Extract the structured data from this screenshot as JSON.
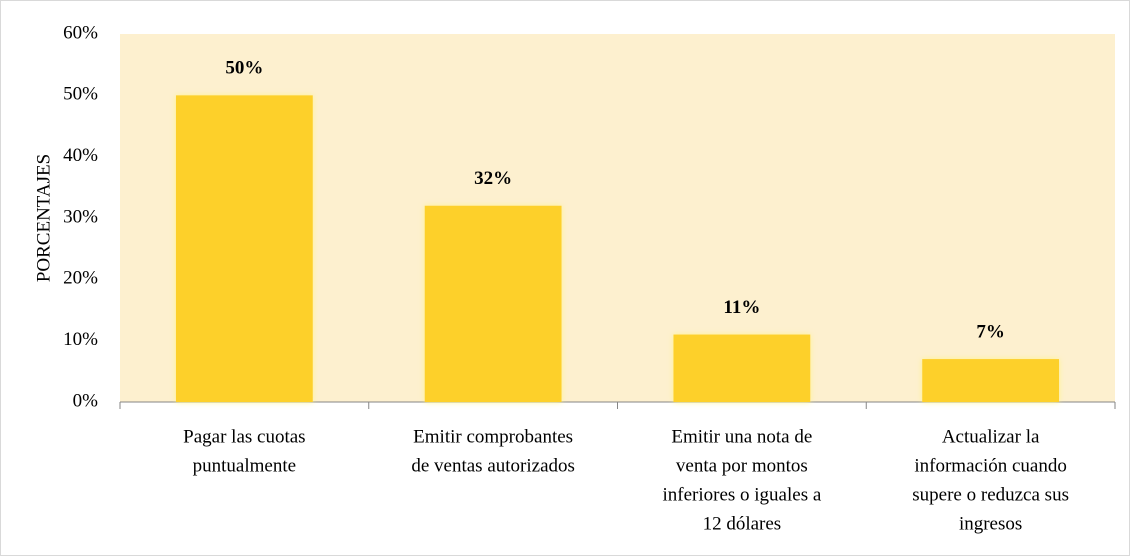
{
  "chart_data": {
    "type": "bar",
    "y_axis_label": "PORCENTAJES",
    "categories": [
      [
        "Pagar las cuotas",
        "puntualmente"
      ],
      [
        "Emitir comprobantes",
        "de ventas autorizados"
      ],
      [
        "Emitir una nota de",
        "venta  por montos",
        "inferiores o iguales a",
        "12 dólares"
      ],
      [
        "Actualizar la",
        "información cuando",
        "supere o reduzca sus",
        "ingresos"
      ]
    ],
    "values": [
      50,
      32,
      11,
      7
    ],
    "value_labels": [
      "50%",
      "32%",
      "11%",
      "7%"
    ],
    "color": "#fdd02a",
    "plot_background": "#fdf0cf",
    "ylim": [
      0,
      60
    ],
    "yticks": [
      {
        "value": 0,
        "label": "0%"
      },
      {
        "value": 10,
        "label": "10%"
      },
      {
        "value": 20,
        "label": "20%"
      },
      {
        "value": 30,
        "label": "30%"
      },
      {
        "value": 40,
        "label": "40%"
      },
      {
        "value": 50,
        "label": "50%"
      },
      {
        "value": 60,
        "label": "60%"
      }
    ]
  }
}
